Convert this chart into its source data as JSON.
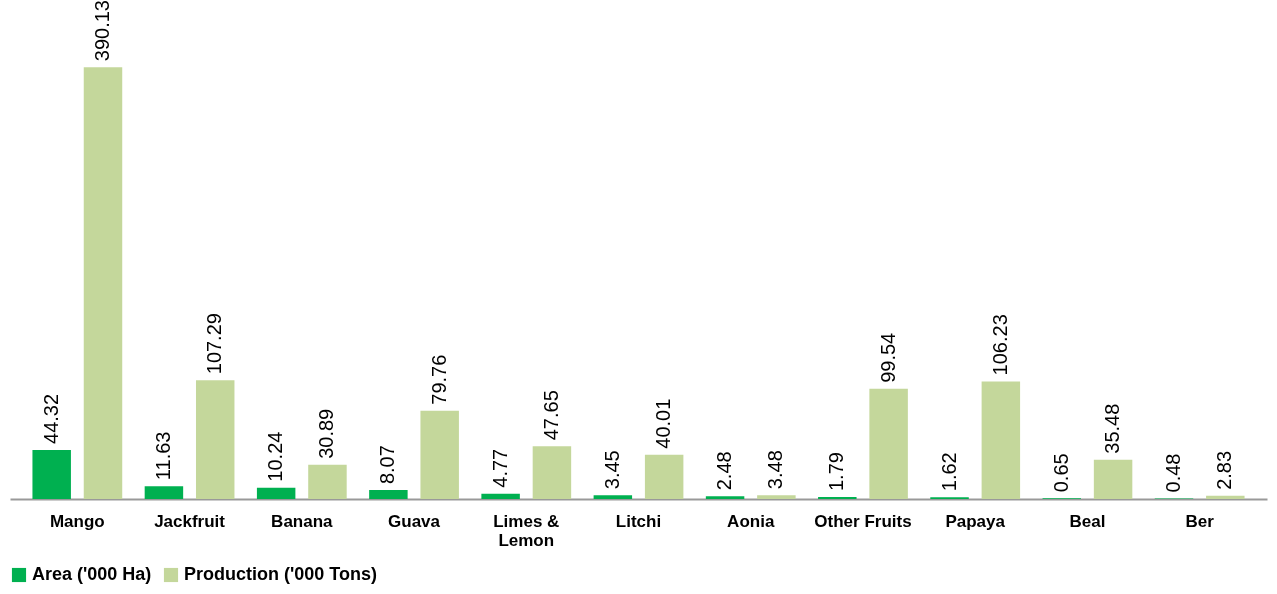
{
  "chart_data": {
    "type": "bar",
    "categories": [
      "Mango",
      "Jackfruit",
      "Banana",
      "Guava",
      "Limes & Lemon",
      "Litchi",
      "Aonia",
      "Other Fruits",
      "Papaya",
      "Beal",
      "Ber"
    ],
    "series": [
      {
        "name": "Area ('000 Ha)",
        "color": "#00b050",
        "values": [
          44.32,
          11.63,
          10.24,
          8.07,
          4.77,
          3.45,
          2.48,
          1.79,
          1.62,
          0.65,
          0.48
        ]
      },
      {
        "name": "Production ('000 Tons)",
        "color": "#c4d79b",
        "values": [
          390.13,
          107.29,
          30.89,
          79.76,
          47.65,
          40.01,
          3.48,
          99.54,
          106.23,
          35.48,
          2.83
        ]
      }
    ],
    "data_labels": true,
    "legend": "bottom",
    "grid": false
  }
}
